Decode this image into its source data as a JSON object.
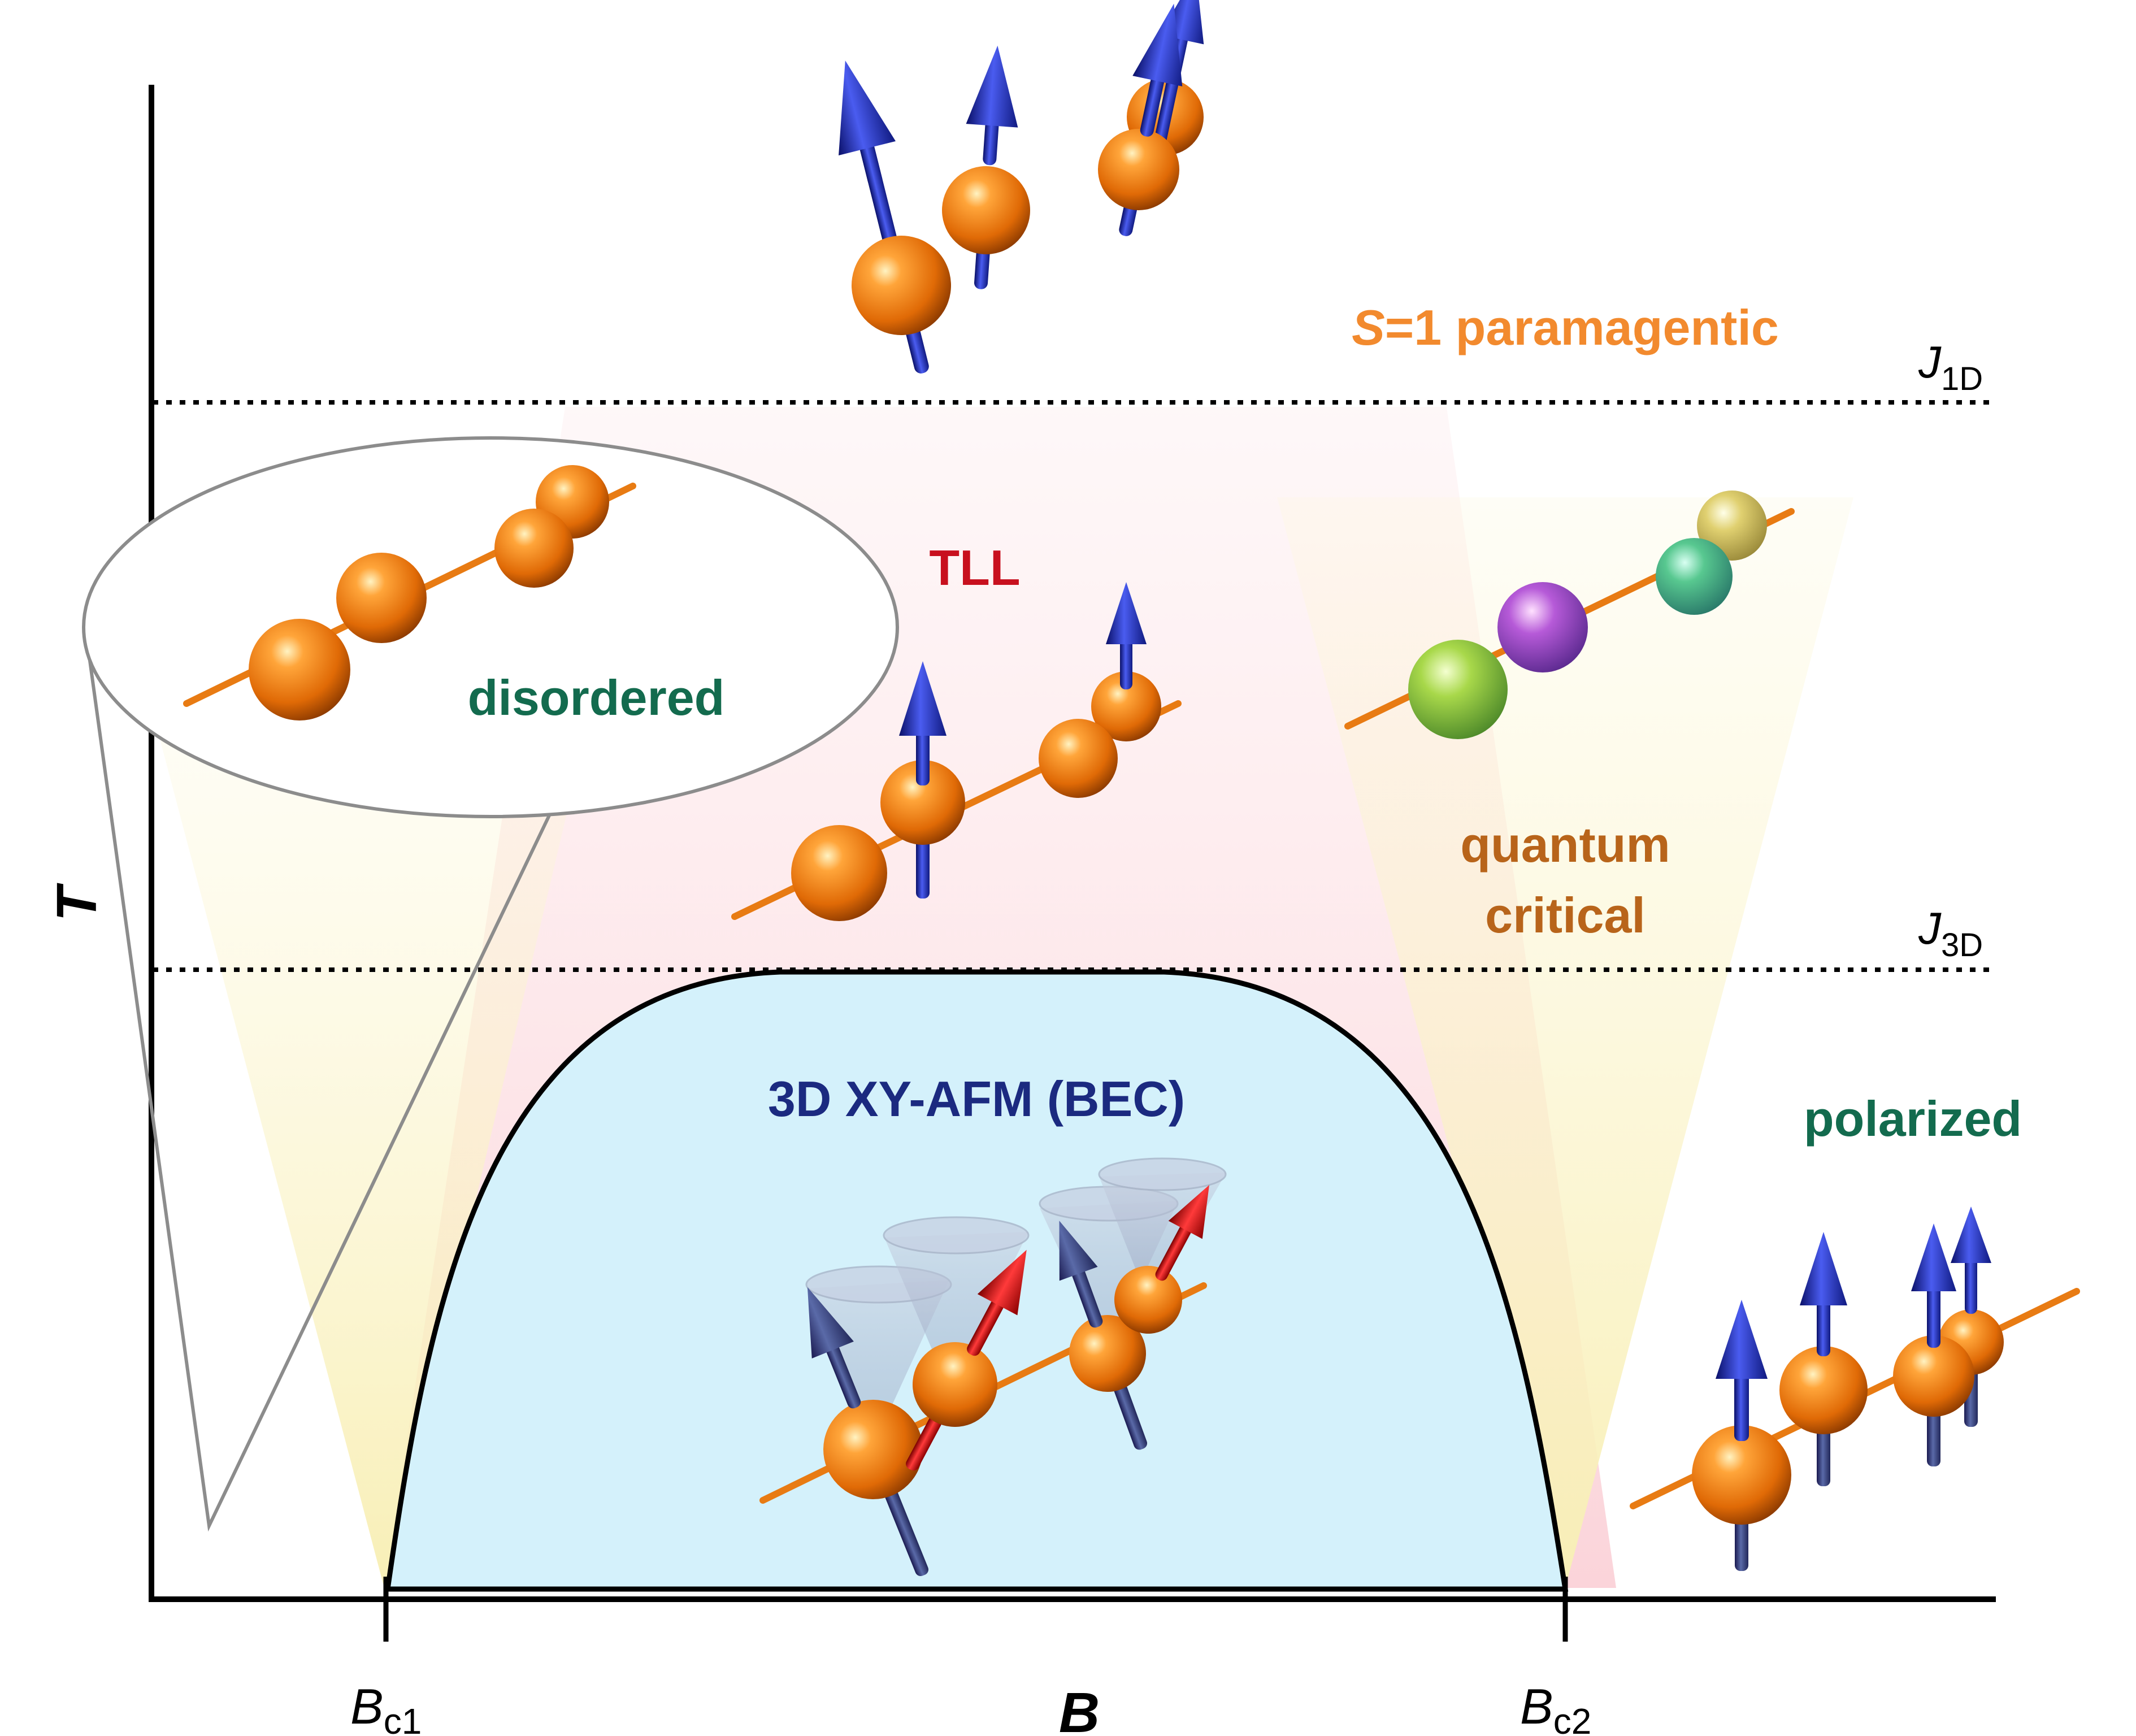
{
  "axes": {
    "x_label": "B",
    "y_label": "T",
    "bc1": {
      "main": "B",
      "sub": "c1"
    },
    "bc2": {
      "main": "B",
      "sub": "c2"
    }
  },
  "energy_scales": {
    "j1d": {
      "main": "J",
      "sub": "1D"
    },
    "j3d": {
      "main": "J",
      "sub": "3D"
    }
  },
  "regions": {
    "paramagnetic": {
      "prefix": "S",
      "rest": "=1 paramagentic",
      "color": "#f28a2e"
    },
    "tll": {
      "text": "TLL",
      "color": "#c8101e"
    },
    "disordered": {
      "text": "disordered",
      "color": "#136b4e"
    },
    "quantum_critical": {
      "line1": "quantum",
      "line2": "critical",
      "color": "#b8641a"
    },
    "bec": {
      "text": "3D XY-AFM (BEC)",
      "color": "#1b2a80"
    },
    "polarized": {
      "text": "polarized",
      "color": "#136b4e"
    }
  },
  "colors": {
    "bec_fill": "#d4f1fb",
    "tll_fan": "#fde1e4",
    "critical_fan": "#fbf4c6",
    "atom": "#e87b13",
    "spin_up": "#2430b8",
    "spin_tilt": "#d01c1c"
  }
}
